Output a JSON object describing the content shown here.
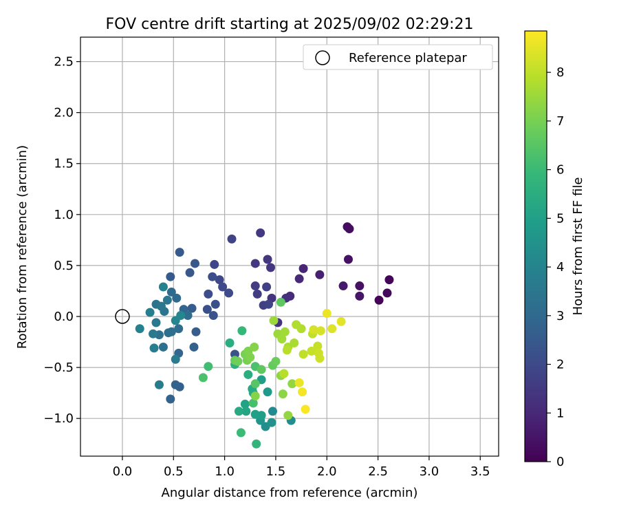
{
  "chart_data": {
    "type": "scatter",
    "title": "FOV centre drift starting at 2025/09/02 02:29:21",
    "xlabel": "Angular distance from reference (arcmin)",
    "ylabel": "Rotation from reference (arcmin)",
    "xlim": [
      -0.41,
      3.68
    ],
    "ylim": [
      -1.37,
      2.74
    ],
    "xticks": [
      "0.0",
      "0.5",
      "1.0",
      "1.5",
      "2.0",
      "2.5",
      "3.0",
      "3.5"
    ],
    "yticks": [
      "−1.0",
      "−0.5",
      "0.0",
      "0.5",
      "1.0",
      "1.5",
      "2.0",
      "2.5"
    ],
    "grid": true,
    "legend": {
      "placement": "top-right",
      "label": "Reference platepar"
    },
    "reference_point": {
      "x": 0.0,
      "y": 0.0
    },
    "colorbar": {
      "label": "Hours from first FF file",
      "min": 0,
      "max": 8.85,
      "ticks": [
        "0",
        "1",
        "2",
        "3",
        "4",
        "5",
        "6",
        "7",
        "8"
      ],
      "colormap": [
        "#440154",
        "#482878",
        "#3e4989",
        "#31688e",
        "#26828e",
        "#1f9e89",
        "#35b779",
        "#6ece58",
        "#b5de2b",
        "#fde725"
      ]
    },
    "points": [
      {
        "x": 2.61,
        "y": 0.36,
        "t": 0.1
      },
      {
        "x": 2.51,
        "y": 0.16,
        "t": 0.1
      },
      {
        "x": 2.59,
        "y": 0.23,
        "t": 0.2
      },
      {
        "x": 2.2,
        "y": 0.88,
        "t": 0.3
      },
      {
        "x": 2.22,
        "y": 0.86,
        "t": 0.3
      },
      {
        "x": 2.21,
        "y": 0.56,
        "t": 0.4
      },
      {
        "x": 2.32,
        "y": 0.3,
        "t": 0.4
      },
      {
        "x": 2.32,
        "y": 0.2,
        "t": 0.5
      },
      {
        "x": 2.16,
        "y": 0.3,
        "t": 0.6
      },
      {
        "x": 1.93,
        "y": 0.41,
        "t": 0.8
      },
      {
        "x": 1.77,
        "y": 0.47,
        "t": 0.9
      },
      {
        "x": 1.73,
        "y": 0.37,
        "t": 1.0
      },
      {
        "x": 1.64,
        "y": 0.2,
        "t": 1.1
      },
      {
        "x": 1.6,
        "y": 0.18,
        "t": 1.2
      },
      {
        "x": 1.52,
        "y": -0.06,
        "t": 1.3
      },
      {
        "x": 1.46,
        "y": 0.18,
        "t": 1.3
      },
      {
        "x": 1.42,
        "y": 0.56,
        "t": 1.4
      },
      {
        "x": 1.45,
        "y": 0.48,
        "t": 1.4
      },
      {
        "x": 1.35,
        "y": 0.82,
        "t": 1.5
      },
      {
        "x": 1.3,
        "y": 0.52,
        "t": 1.5
      },
      {
        "x": 1.3,
        "y": 0.3,
        "t": 1.6
      },
      {
        "x": 1.32,
        "y": 0.22,
        "t": 1.6
      },
      {
        "x": 1.41,
        "y": 0.29,
        "t": 1.7
      },
      {
        "x": 1.38,
        "y": 0.11,
        "t": 1.7
      },
      {
        "x": 1.43,
        "y": 0.12,
        "t": 1.8
      },
      {
        "x": 1.07,
        "y": 0.76,
        "t": 1.8
      },
      {
        "x": 0.9,
        "y": 0.51,
        "t": 1.9
      },
      {
        "x": 0.95,
        "y": 0.36,
        "t": 1.9
      },
      {
        "x": 0.98,
        "y": 0.29,
        "t": 2.0
      },
      {
        "x": 1.04,
        "y": 0.23,
        "t": 2.0
      },
      {
        "x": 0.88,
        "y": 0.39,
        "t": 2.1
      },
      {
        "x": 0.84,
        "y": 0.22,
        "t": 2.1
      },
      {
        "x": 0.91,
        "y": 0.12,
        "t": 2.2
      },
      {
        "x": 0.83,
        "y": 0.07,
        "t": 2.2
      },
      {
        "x": 0.89,
        "y": 0.01,
        "t": 2.3
      },
      {
        "x": 1.1,
        "y": -0.37,
        "t": 2.3
      },
      {
        "x": 0.71,
        "y": 0.52,
        "t": 2.4
      },
      {
        "x": 0.66,
        "y": 0.43,
        "t": 2.4
      },
      {
        "x": 0.56,
        "y": 0.63,
        "t": 2.5
      },
      {
        "x": 0.47,
        "y": 0.39,
        "t": 2.5
      },
      {
        "x": 0.68,
        "y": 0.08,
        "t": 2.6
      },
      {
        "x": 0.72,
        "y": -0.15,
        "t": 2.6
      },
      {
        "x": 0.7,
        "y": -0.3,
        "t": 2.7
      },
      {
        "x": 0.56,
        "y": -0.69,
        "t": 2.7
      },
      {
        "x": 0.52,
        "y": -0.67,
        "t": 2.8
      },
      {
        "x": 0.47,
        "y": -0.81,
        "t": 2.8
      },
      {
        "x": 0.55,
        "y": -0.36,
        "t": 2.9
      },
      {
        "x": 0.6,
        "y": 0.07,
        "t": 2.9
      },
      {
        "x": 0.53,
        "y": 0.18,
        "t": 3.0
      },
      {
        "x": 0.48,
        "y": 0.24,
        "t": 3.0
      },
      {
        "x": 0.64,
        "y": 0.01,
        "t": 3.1
      },
      {
        "x": 0.55,
        "y": -0.12,
        "t": 3.1
      },
      {
        "x": 0.48,
        "y": -0.15,
        "t": 3.2
      },
      {
        "x": 0.45,
        "y": -0.16,
        "t": 3.2
      },
      {
        "x": 0.4,
        "y": -0.3,
        "t": 3.3
      },
      {
        "x": 0.36,
        "y": -0.18,
        "t": 3.3
      },
      {
        "x": 0.33,
        "y": 0.12,
        "t": 3.4
      },
      {
        "x": 0.41,
        "y": 0.05,
        "t": 3.4
      },
      {
        "x": 0.38,
        "y": 0.1,
        "t": 3.5
      },
      {
        "x": 0.44,
        "y": 0.16,
        "t": 3.5
      },
      {
        "x": 0.33,
        "y": -0.06,
        "t": 3.6
      },
      {
        "x": 0.3,
        "y": -0.17,
        "t": 3.6
      },
      {
        "x": 0.36,
        "y": -0.67,
        "t": 3.7
      },
      {
        "x": 0.52,
        "y": -0.42,
        "t": 3.7
      },
      {
        "x": 0.31,
        "y": -0.31,
        "t": 3.8
      },
      {
        "x": 0.27,
        "y": 0.04,
        "t": 3.8
      },
      {
        "x": 0.4,
        "y": 0.29,
        "t": 3.9
      },
      {
        "x": 0.17,
        "y": -0.12,
        "t": 3.9
      },
      {
        "x": 0.52,
        "y": -0.04,
        "t": 4.0
      },
      {
        "x": 0.57,
        "y": 0.01,
        "t": 4.1
      },
      {
        "x": 1.47,
        "y": -0.93,
        "t": 4.2
      },
      {
        "x": 1.65,
        "y": -1.02,
        "t": 4.3
      },
      {
        "x": 1.4,
        "y": -1.08,
        "t": 4.4
      },
      {
        "x": 1.46,
        "y": -1.04,
        "t": 4.5
      },
      {
        "x": 1.35,
        "y": -1.02,
        "t": 4.6
      },
      {
        "x": 1.42,
        "y": -0.74,
        "t": 4.8
      },
      {
        "x": 1.36,
        "y": -0.62,
        "t": 4.9
      },
      {
        "x": 1.36,
        "y": -0.97,
        "t": 4.9
      },
      {
        "x": 1.3,
        "y": -0.96,
        "t": 5.0
      },
      {
        "x": 1.2,
        "y": -0.86,
        "t": 5.1
      },
      {
        "x": 1.21,
        "y": -0.93,
        "t": 5.2
      },
      {
        "x": 1.14,
        "y": -0.93,
        "t": 5.3
      },
      {
        "x": 1.27,
        "y": -0.71,
        "t": 5.3
      },
      {
        "x": 1.28,
        "y": -0.75,
        "t": 5.4
      },
      {
        "x": 1.23,
        "y": -0.57,
        "t": 5.5
      },
      {
        "x": 1.05,
        "y": -0.26,
        "t": 5.5
      },
      {
        "x": 1.1,
        "y": -0.47,
        "t": 5.6
      },
      {
        "x": 1.31,
        "y": -1.25,
        "t": 5.8
      },
      {
        "x": 1.17,
        "y": -0.14,
        "t": 5.9
      },
      {
        "x": 1.16,
        "y": -1.14,
        "t": 6.0
      },
      {
        "x": 0.84,
        "y": -0.49,
        "t": 6.1
      },
      {
        "x": 0.79,
        "y": -0.6,
        "t": 6.3
      },
      {
        "x": 1.28,
        "y": -0.85,
        "t": 6.2
      },
      {
        "x": 1.3,
        "y": -0.49,
        "t": 6.3
      },
      {
        "x": 1.3,
        "y": -0.66,
        "t": 6.5
      },
      {
        "x": 1.36,
        "y": -0.52,
        "t": 6.6
      },
      {
        "x": 1.47,
        "y": -0.48,
        "t": 6.7
      },
      {
        "x": 1.5,
        "y": -0.44,
        "t": 6.8
      },
      {
        "x": 1.55,
        "y": 0.14,
        "t": 6.6
      },
      {
        "x": 1.1,
        "y": -0.43,
        "t": 6.8
      },
      {
        "x": 1.13,
        "y": -0.44,
        "t": 6.9
      },
      {
        "x": 1.2,
        "y": -0.37,
        "t": 7.0
      },
      {
        "x": 1.22,
        "y": -0.43,
        "t": 7.0
      },
      {
        "x": 1.25,
        "y": -0.4,
        "t": 7.1
      },
      {
        "x": 1.23,
        "y": -0.34,
        "t": 7.1
      },
      {
        "x": 1.29,
        "y": -0.3,
        "t": 7.2
      },
      {
        "x": 1.3,
        "y": -0.78,
        "t": 7.2
      },
      {
        "x": 1.55,
        "y": -0.58,
        "t": 7.3
      },
      {
        "x": 1.57,
        "y": -0.76,
        "t": 7.3
      },
      {
        "x": 1.62,
        "y": -0.97,
        "t": 7.4
      },
      {
        "x": 1.66,
        "y": -0.66,
        "t": 7.4
      },
      {
        "x": 1.48,
        "y": -0.04,
        "t": 7.5
      },
      {
        "x": 1.52,
        "y": -0.17,
        "t": 7.5
      },
      {
        "x": 1.56,
        "y": -0.22,
        "t": 7.6
      },
      {
        "x": 1.59,
        "y": -0.15,
        "t": 7.6
      },
      {
        "x": 1.62,
        "y": -0.3,
        "t": 7.7
      },
      {
        "x": 1.68,
        "y": -0.26,
        "t": 7.7
      },
      {
        "x": 1.7,
        "y": -0.08,
        "t": 7.8
      },
      {
        "x": 1.75,
        "y": -0.12,
        "t": 7.8
      },
      {
        "x": 1.58,
        "y": -0.56,
        "t": 7.9
      },
      {
        "x": 1.61,
        "y": -0.33,
        "t": 7.9
      },
      {
        "x": 1.77,
        "y": -0.37,
        "t": 8.0
      },
      {
        "x": 1.86,
        "y": -0.17,
        "t": 8.0
      },
      {
        "x": 1.85,
        "y": -0.34,
        "t": 8.1
      },
      {
        "x": 1.91,
        "y": -0.29,
        "t": 8.1
      },
      {
        "x": 1.93,
        "y": -0.41,
        "t": 8.2
      },
      {
        "x": 1.92,
        "y": -0.36,
        "t": 8.2
      },
      {
        "x": 1.94,
        "y": -0.14,
        "t": 8.3
      },
      {
        "x": 1.87,
        "y": -0.13,
        "t": 8.3
      },
      {
        "x": 2.05,
        "y": -0.12,
        "t": 8.4
      },
      {
        "x": 2.14,
        "y": -0.05,
        "t": 8.5
      },
      {
        "x": 2.0,
        "y": 0.03,
        "t": 8.6
      },
      {
        "x": 1.73,
        "y": -0.65,
        "t": 8.6
      },
      {
        "x": 1.76,
        "y": -0.74,
        "t": 8.7
      },
      {
        "x": 1.79,
        "y": -0.91,
        "t": 8.8
      }
    ]
  }
}
